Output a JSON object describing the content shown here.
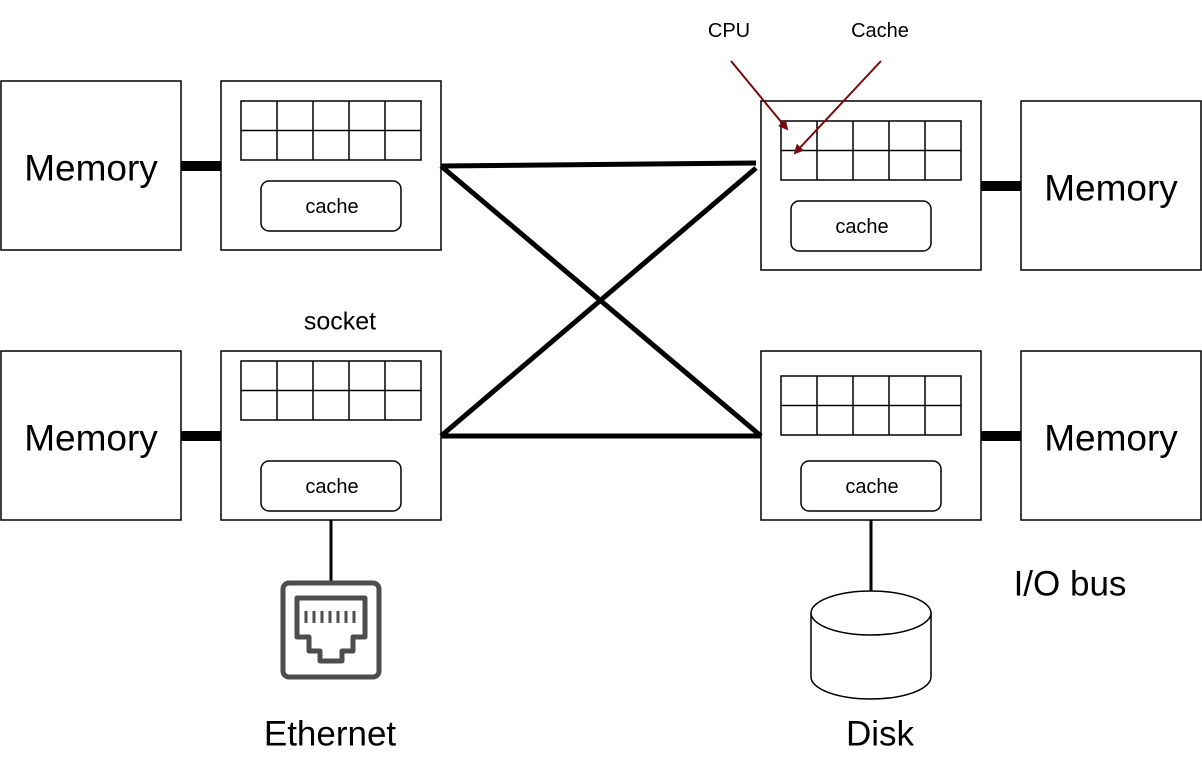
{
  "memory_label": "Memory",
  "cache_label": "cache",
  "socket_label": "socket",
  "cpu_label": "CPU",
  "cache_pointer_label": "Cache",
  "ethernet_label": "Ethernet",
  "disk_label": "Disk",
  "io_bus_label": "I/O bus",
  "colors": {
    "line": "#000000",
    "annotation_arrow": "#7a0a0a",
    "ethernet_icon": "#4d4d4d",
    "background": "#ffffff"
  },
  "icons": [
    "ethernet-port-icon",
    "disk-cylinder-icon"
  ]
}
